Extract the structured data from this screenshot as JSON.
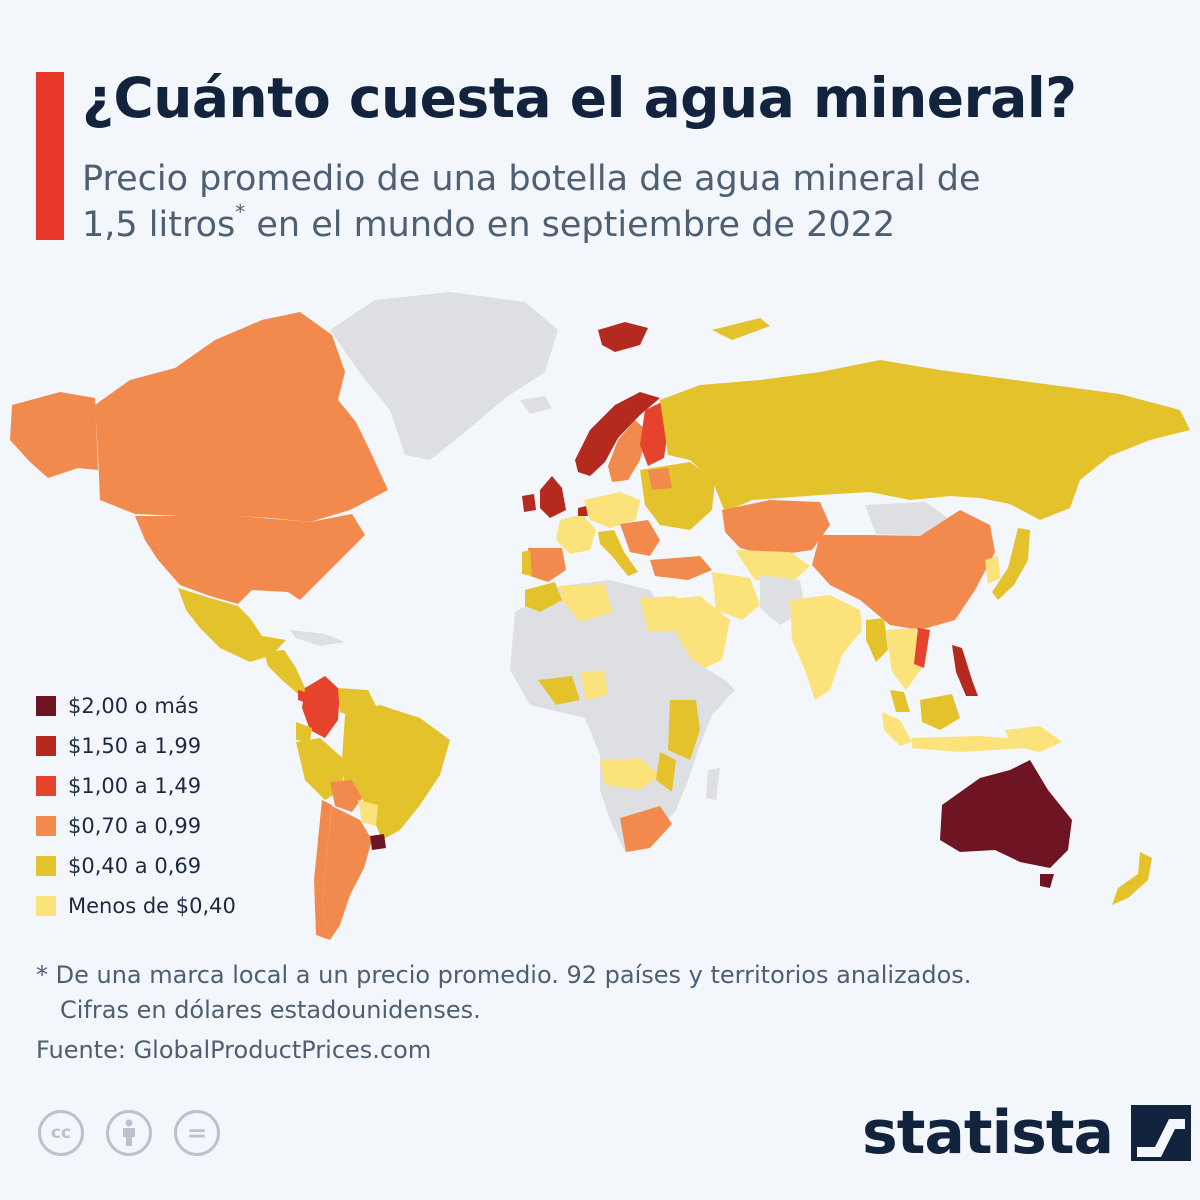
{
  "title": "¿Cuánto cuesta el agua mineral?",
  "subtitle_line1": "Precio promedio de una botella de agua mineral de",
  "subtitle_line2_a": "1,5 litros",
  "subtitle_asterisk": "*",
  "subtitle_line2_b": " en el mundo en septiembre de 2022",
  "legend": [
    {
      "label": "$2,00 o más",
      "color": "#6e1423"
    },
    {
      "label": "$1,50 a 1,99",
      "color": "#b52a1e"
    },
    {
      "label": "$1,00 a 1,49",
      "color": "#e5432c"
    },
    {
      "label": "$0,70 a 0,99",
      "color": "#f28a4e"
    },
    {
      "label": "$0,40 a 0,69",
      "color": "#e4c22c"
    },
    {
      "label": "Menos de $0,40",
      "color": "#fbe27a"
    }
  ],
  "no_data_color": "#dedfe2",
  "footnote_line1": "* De una marca local a un precio promedio. 92 países y territorios analizados.",
  "footnote_line2": "Cifras en dólares estadounidenses.",
  "source": "Fuente: GlobalProductPrices.com",
  "cc_icons": [
    {
      "name": "cc-icon",
      "glyph": "cc"
    },
    {
      "name": "attribution-icon",
      "glyph": "i"
    },
    {
      "name": "no-derivatives-icon",
      "glyph": "="
    }
  ],
  "brand": "statista"
}
